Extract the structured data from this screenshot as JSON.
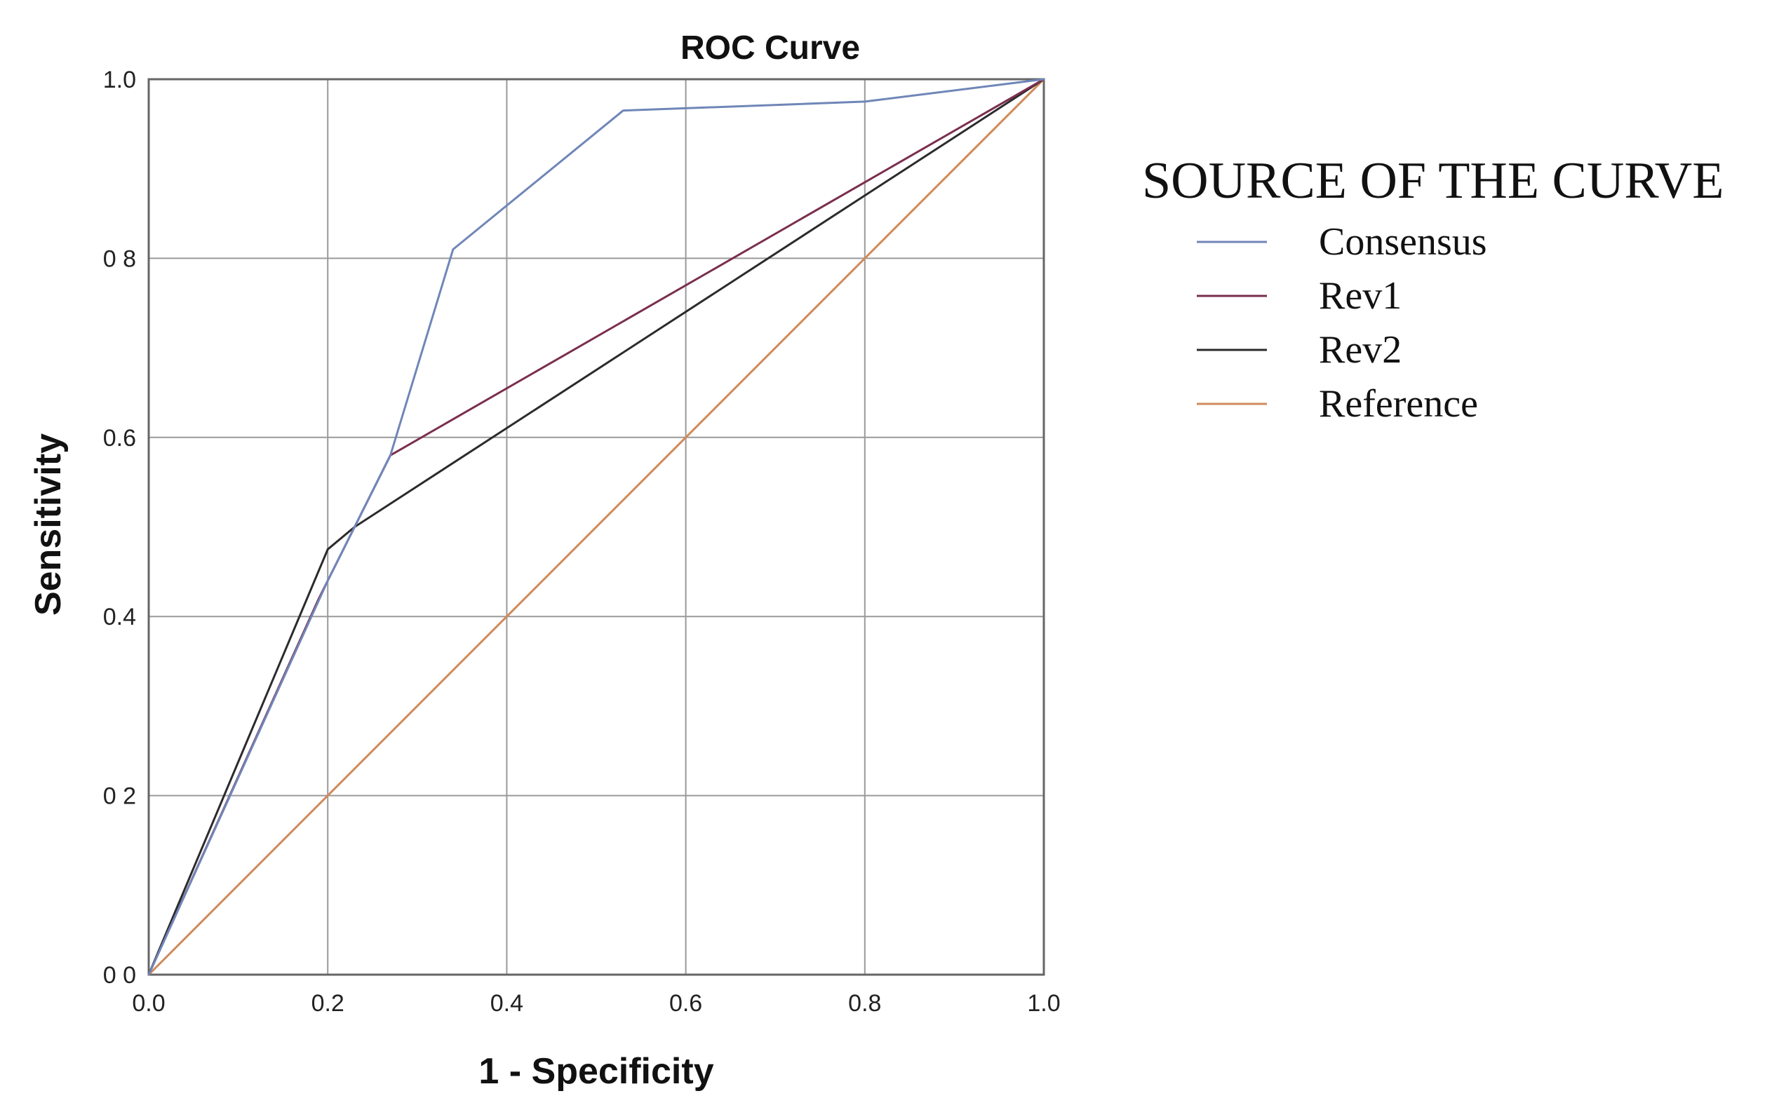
{
  "chart_data": {
    "type": "line",
    "title": "ROC Curve",
    "xlabel": "1 - Specificity",
    "ylabel": "Sensitivity",
    "xlim": [
      0,
      1
    ],
    "ylim": [
      0,
      1
    ],
    "grid": true,
    "x_ticks": [
      "0.0",
      "0.2",
      "0.4",
      "0.6",
      "0.8",
      "1.0"
    ],
    "y_ticks": [
      "0 0",
      "0 2",
      "0.4",
      "0.6",
      "0 8",
      "1.0"
    ],
    "legend_title": "SOURCE OF THE CURVE",
    "legend_position": "right",
    "series": [
      {
        "name": "Consensus",
        "color": "#6f86b8",
        "points": [
          [
            0,
            0
          ],
          [
            0.2,
            0.44
          ],
          [
            0.27,
            0.58
          ],
          [
            0.34,
            0.81
          ],
          [
            0.53,
            0.965
          ],
          [
            0.8,
            0.975
          ],
          [
            1.0,
            1.0
          ]
        ]
      },
      {
        "name": "Rev1",
        "color": "#7a2e4e",
        "points": [
          [
            0,
            0
          ],
          [
            0.19,
            0.42
          ],
          [
            0.27,
            0.58
          ],
          [
            1.0,
            1.0
          ]
        ]
      },
      {
        "name": "Rev2",
        "color": "#2b2b2b",
        "points": [
          [
            0,
            0
          ],
          [
            0.2,
            0.475
          ],
          [
            0.23,
            0.5
          ],
          [
            1.0,
            1.0
          ]
        ]
      },
      {
        "name": "Reference",
        "color": "#d08a5a",
        "points": [
          [
            0,
            0
          ],
          [
            1.0,
            1.0
          ]
        ]
      }
    ]
  }
}
